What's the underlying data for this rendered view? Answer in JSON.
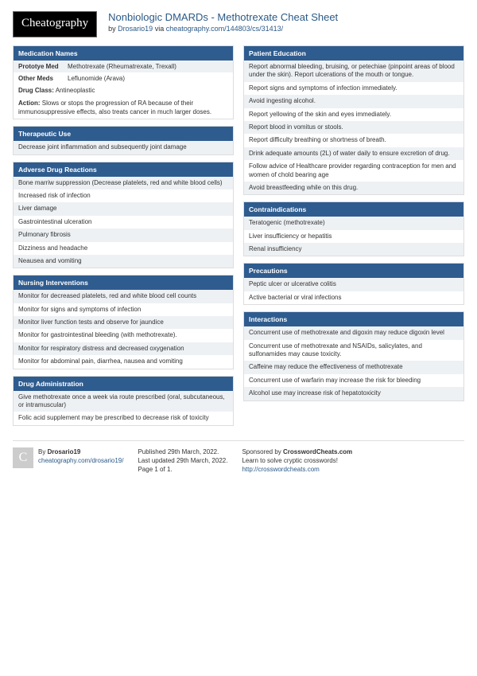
{
  "header": {
    "logo": "Cheatography",
    "title": "Nonbiologic DMARDs - Methotrexate Cheat Sheet",
    "by": "by ",
    "author": "Drosario19",
    "via": " via ",
    "url": "cheatography.com/144803/cs/31413/"
  },
  "left": {
    "medNames": {
      "title": "Medication Names",
      "rows": [
        {
          "k": "Prototye Med",
          "v": "Methotrexate (Rheumatrexate, Trexall)"
        },
        {
          "k": "Other Meds",
          "v": "Leflunomide (Arava)"
        }
      ],
      "drugClassLabel": "Drug Class:",
      "drugClass": " Antineoplastic",
      "actionLabel": "Action:",
      "action": " Slows or stops the progression of RA because of their immunosuppressive effects, also treats cancer in much larger doses."
    },
    "therapeutic": {
      "title": "Therapeutic Use",
      "items": [
        "Decrease joint inflammation and subsequently joint damage"
      ]
    },
    "adverse": {
      "title": "Adverse Drug Reactions",
      "items": [
        "Bone marriw suppression (Decrease platelets, red and white blood cells)",
        "Increased risk of infection",
        "Liver damage",
        "Gastrointestinal ulceration",
        "Pulmonary fibrosis",
        "Dizziness and headache",
        "Neausea and vomiting"
      ]
    },
    "nursing": {
      "title": "Nursing Interventions",
      "items": [
        "Monitor for decreased platelets, red and white blood cell counts",
        "Monitor for signs and symptoms of infection",
        "Monitor liver function tests and observe for jaundice",
        "Monitor for gastrointestinal bleeding (with methotrexate).",
        "Monitor for respiratory distress and decreased oxygenation",
        "Monitor for abdominal pain, diarrhea, nausea and vomiting"
      ]
    },
    "admin": {
      "title": "Drug Administration",
      "items": [
        "Give methotrexate once a week via route prescribed (oral, subcutaneous, or intramuscular)",
        "Folic acid supplement may be prescribed to decrease risk of toxicity"
      ]
    }
  },
  "right": {
    "education": {
      "title": "Patient Education",
      "items": [
        "Report abnormal bleeding, bruising, or petechiae (pinpoint areas of blood under the skin). Report ulcerations of the mouth or tongue.",
        "Report signs and symptoms of infection immediately.",
        "Avoid ingesting alcohol.",
        "Report yellowing of the skin and eyes immediately.",
        "Report blood in vomitus or stools.",
        "Report difficulty breathing or shortness of breath.",
        "Drink adequate amounts (2L) of water daily to ensure excretion of drug.",
        "Follow advice of Healthcare provider regarding contraception for men and women of chold bearing age",
        "Avoid breastfeeding while on this drug."
      ]
    },
    "contra": {
      "title": "Contraindications",
      "items": [
        "Teratogenic (methotrexate)",
        "Liver insufficiency or hepatitis",
        "Renal insufficiency"
      ]
    },
    "precautions": {
      "title": "Precautions",
      "items": [
        "Peptic ulcer or ulcerative colitis",
        "Active bacterial or viral infections"
      ]
    },
    "interactions": {
      "title": "Interactions",
      "items": [
        "Concurrent use of methotrexate and digoxin may reduce digoxin level",
        "Concurrent use of methotrexate and NSAIDs, salicylates, and sulfonamides may cause toxicity.",
        "Caffeine may reduce the effectiveness of methotrexate",
        "Concurrent use of warfarin may increase the risk for bleeding",
        "Alcohol use may increase risk of hepatotoxicity"
      ]
    }
  },
  "footer": {
    "byLabel": "By ",
    "author": "Drosario19",
    "authorUrl": "cheatography.com/drosario19/",
    "pub": "Published 29th March, 2022.",
    "upd": "Last updated 29th March, 2022.",
    "page": "Page 1 of 1.",
    "spons": "Sponsored by ",
    "sponsName": "CrosswordCheats.com",
    "sponsTag": "Learn to solve cryptic crosswords!",
    "sponsUrl": "http://crosswordcheats.com"
  }
}
